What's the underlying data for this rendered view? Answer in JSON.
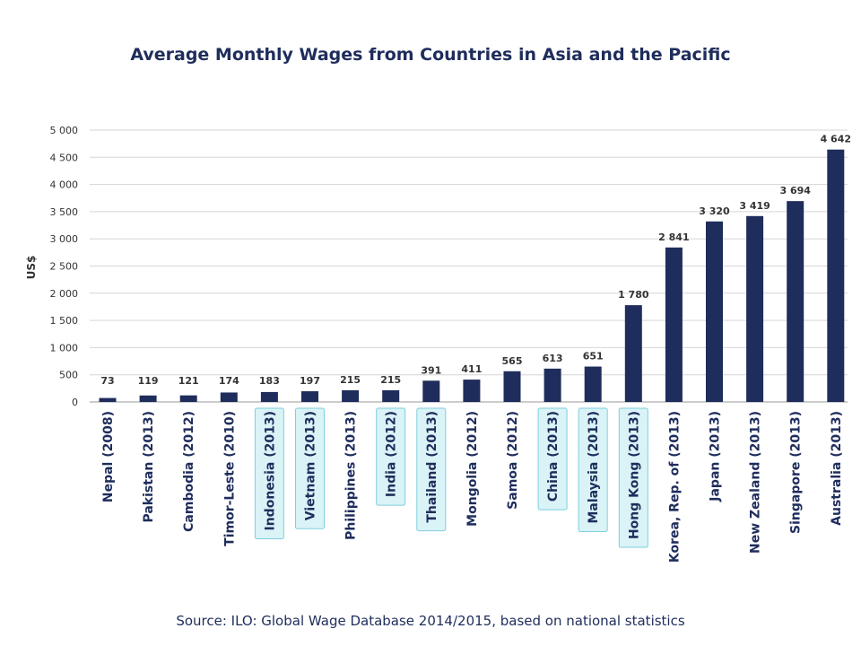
{
  "chart_data": {
    "type": "bar",
    "title": "Average Monthly Wages from Countries in Asia and the Pacific",
    "ylabel": "US$",
    "xlabel": "",
    "ylim": [
      0,
      5000
    ],
    "yticks": [
      0,
      500,
      1000,
      1500,
      2000,
      2500,
      3000,
      3500,
      4000,
      4500,
      5000
    ],
    "ytick_labels": [
      "0",
      "500",
      "1 000",
      "1 500",
      "2 000",
      "2 500",
      "3 000",
      "3 500",
      "4 000",
      "4 500",
      "5 000"
    ],
    "grid": true,
    "bar_color": "#1f2d5c",
    "highlight_color": "#d9f3f7",
    "highlight_border": "#7fcfdc",
    "categories": [
      "Nepal (2008)",
      "Pakistan (2013)",
      "Cambodia (2012)",
      "Timor-Leste (2010)",
      "Indonesia (2013)",
      "Vietnam (2013)",
      "Philippines (2013)",
      "India (2012)",
      "Thailand (2013)",
      "Mongolia (2012)",
      "Samoa (2012)",
      "China (2013)",
      "Malaysia (2013)",
      "Hong Kong (2013)",
      "Korea, Rep. of (2013)",
      "Japan (2013)",
      "New Zealand (2013)",
      "Singapore (2013)",
      "Australia (2013)"
    ],
    "values": [
      73,
      119,
      121,
      174,
      183,
      197,
      215,
      215,
      391,
      411,
      565,
      613,
      651,
      1780,
      2841,
      3320,
      3419,
      3694,
      4642
    ],
    "value_labels": [
      "73",
      "119",
      "121",
      "174",
      "183",
      "197",
      "215",
      "215",
      "391",
      "411",
      "565",
      "613",
      "651",
      "1 780",
      "2 841",
      "3 320",
      "3 419",
      "3 694",
      "4 642"
    ],
    "highlighted": [
      false,
      false,
      false,
      false,
      true,
      true,
      false,
      true,
      true,
      false,
      false,
      true,
      true,
      true,
      false,
      false,
      false,
      false,
      false
    ]
  },
  "source": "Source: ILO: Global Wage Database 2014/2015, based on national statistics"
}
